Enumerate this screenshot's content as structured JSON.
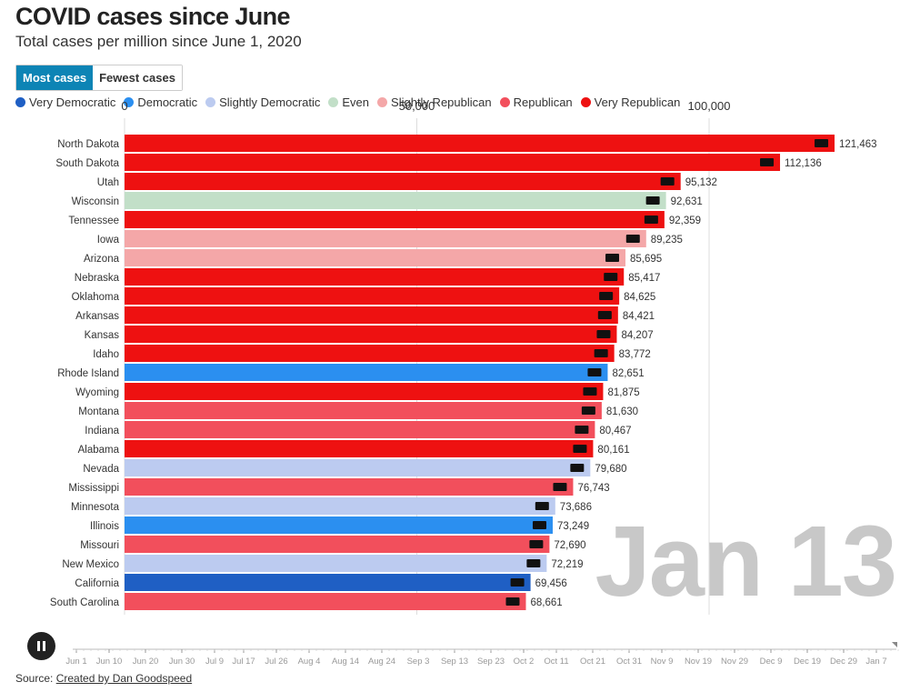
{
  "title": "COVID cases since June",
  "subtitle": "Total cases per million since June 1, 2020",
  "toggle": {
    "most": "Most cases",
    "fewest": "Fewest cases"
  },
  "legend": [
    {
      "label": "Very Democratic",
      "color": "#1f5fc4"
    },
    {
      "label": "Democratic",
      "color": "#2b8ff0"
    },
    {
      "label": "Slightly Democratic",
      "color": "#bccbf0"
    },
    {
      "label": "Even",
      "color": "#c2dfc8"
    },
    {
      "label": "Slightly Republican",
      "color": "#f4a7a8"
    },
    {
      "label": "Republican",
      "color": "#f24f5c"
    },
    {
      "label": "Very Republican",
      "color": "#ee1111"
    }
  ],
  "date_label": "Jan 13",
  "source": {
    "prefix": "Source: ",
    "link": "Created by Dan Goodspeed"
  },
  "timeline": {
    "ticks": [
      "Jun 1",
      "Jun 10",
      "Jun 20",
      "Jun 30",
      "Jul 9",
      "Jul 17",
      "Jul 26",
      "Aug 4",
      "Aug 14",
      "Aug 24",
      "Sep 3",
      "Sep 13",
      "Sep 23",
      "Oct 2",
      "Oct 11",
      "Oct 21",
      "Oct 31",
      "Nov 9",
      "Nov 19",
      "Nov 29",
      "Dec 9",
      "Dec 19",
      "Dec 29",
      "Jan 7"
    ],
    "current": "Jan 13"
  },
  "chart_data": {
    "type": "bar",
    "orientation": "horizontal",
    "title": "COVID cases since June",
    "subtitle": "Total cases per million since June 1, 2020",
    "xlim": [
      0,
      125000
    ],
    "xticks": [
      0,
      50000,
      100000
    ],
    "xtick_labels": [
      "0",
      "50,000",
      "100,000"
    ],
    "categories": [
      "North Dakota",
      "South Dakota",
      "Utah",
      "Wisconsin",
      "Tennessee",
      "Iowa",
      "Arizona",
      "Nebraska",
      "Oklahoma",
      "Arkansas",
      "Kansas",
      "Idaho",
      "Rhode Island",
      "Wyoming",
      "Montana",
      "Indiana",
      "Alabama",
      "Nevada",
      "Mississippi",
      "Minnesota",
      "Illinois",
      "Missouri",
      "New Mexico",
      "California",
      "South Carolina"
    ],
    "values": [
      121463,
      112136,
      95132,
      92631,
      92359,
      89235,
      85695,
      85417,
      84625,
      84421,
      84207,
      83772,
      82651,
      81875,
      81630,
      80467,
      80161,
      79680,
      76743,
      73686,
      73249,
      72690,
      72219,
      69456,
      68661
    ],
    "value_labels": [
      "121,463",
      "112,136",
      "95,132",
      "92,631",
      "92,359",
      "89,235",
      "85,695",
      "85,417",
      "84,625",
      "84,421",
      "84,207",
      "83,772",
      "82,651",
      "81,875",
      "81,630",
      "80,467",
      "80,161",
      "79,680",
      "76,743",
      "73,686",
      "73,249",
      "72,690",
      "72,219",
      "69,456",
      "68,661"
    ],
    "lean": [
      "Very Republican",
      "Very Republican",
      "Very Republican",
      "Even",
      "Very Republican",
      "Slightly Republican",
      "Slightly Republican",
      "Very Republican",
      "Very Republican",
      "Very Republican",
      "Very Republican",
      "Very Republican",
      "Democratic",
      "Very Republican",
      "Republican",
      "Republican",
      "Very Republican",
      "Slightly Democratic",
      "Republican",
      "Slightly Democratic",
      "Democratic",
      "Republican",
      "Slightly Democratic",
      "Very Democratic",
      "Republican"
    ]
  }
}
